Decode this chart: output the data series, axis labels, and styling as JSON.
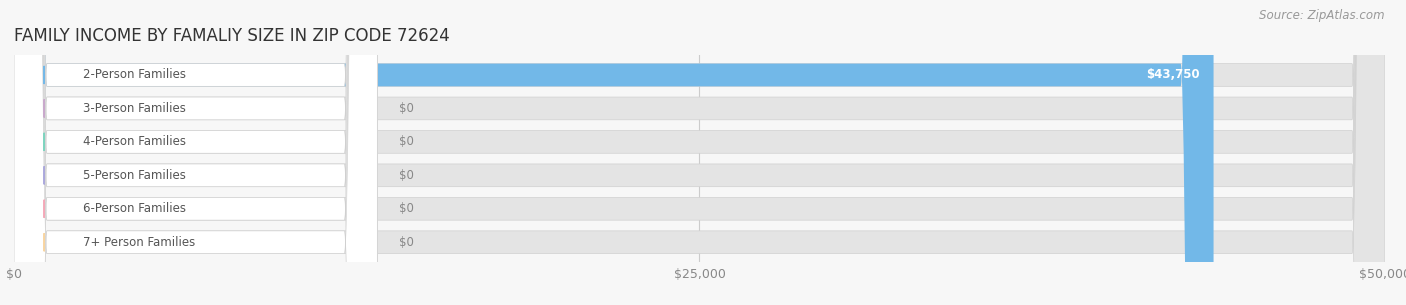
{
  "title": "FAMILY INCOME BY FAMALIY SIZE IN ZIP CODE 72624",
  "source": "Source: ZipAtlas.com",
  "categories": [
    "2-Person Families",
    "3-Person Families",
    "4-Person Families",
    "5-Person Families",
    "6-Person Families",
    "7+ Person Families"
  ],
  "values": [
    43750,
    0,
    0,
    0,
    0,
    0
  ],
  "bar_colors": [
    "#72b8e8",
    "#c9a8cc",
    "#7dd4bf",
    "#aba8dc",
    "#f4a8b8",
    "#f8d4a0"
  ],
  "value_labels": [
    "$43,750",
    "$0",
    "$0",
    "$0",
    "$0",
    "$0"
  ],
  "xlim": [
    0,
    50000
  ],
  "xticks": [
    0,
    25000,
    50000
  ],
  "xtick_labels": [
    "$0",
    "$25,000",
    "$50,000"
  ],
  "bg_color": "#f7f7f7",
  "bar_bg_color": "#e4e4e4",
  "title_fontsize": 12,
  "tick_fontsize": 9,
  "label_fontsize": 8.5,
  "value_fontsize": 8.5,
  "source_fontsize": 8.5
}
